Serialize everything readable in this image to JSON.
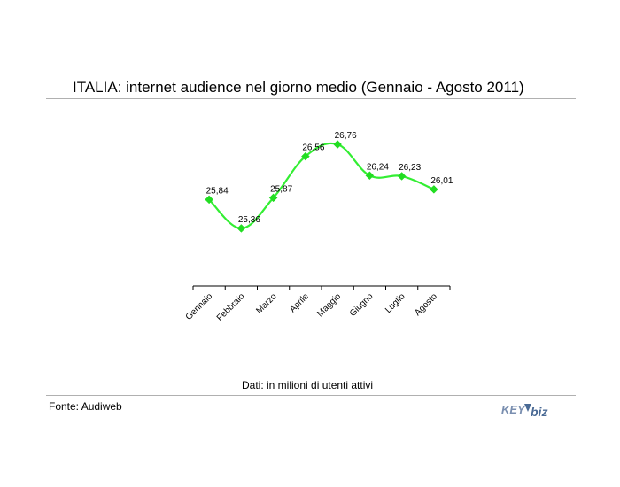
{
  "header": {
    "title": "ITALIA: internet audience nel giorno medio (Gennaio - Agosto 2011)"
  },
  "footer": {
    "note": "Dati: in milioni di utenti attivi",
    "source": "Fonte: Audiweb",
    "logo_text": "KEY4biz"
  },
  "colors": {
    "line": "#33ee33",
    "marker": "#22dd22",
    "axis": "#000000",
    "rule": "#b0b0b0",
    "logo_key": "#7a8fb0",
    "logo_biz": "#4a6a95"
  },
  "chart_data": {
    "type": "line",
    "categories": [
      "Gennaio",
      "Febbraio",
      "Marzo",
      "Aprile",
      "Maggio",
      "Giugno",
      "Luglio",
      "Agosto"
    ],
    "values": [
      25.84,
      25.36,
      25.87,
      26.56,
      26.76,
      26.24,
      26.23,
      26.01
    ],
    "data_labels": [
      "25,84",
      "25,36",
      "25,87",
      "26,56",
      "26,76",
      "26,24",
      "26,23",
      "26,01"
    ],
    "title": "ITALIA: internet audience nel giorno medio (Gennaio - Agosto 2011)",
    "xlabel": "",
    "ylabel": "",
    "ylim": [
      24.4,
      27.1
    ],
    "grid": false,
    "legend": "none",
    "y_axis_visible": false,
    "smooth": true
  }
}
